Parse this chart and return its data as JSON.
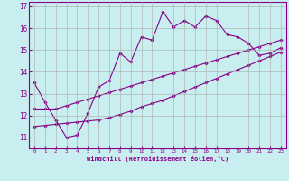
{
  "xlabel": "Windchill (Refroidissement éolien,°C)",
  "ylabel": "",
  "bg_color": "#c8eef0",
  "line_color": "#880088",
  "grid_color": "#aaaaaa",
  "x_ticks": [
    0,
    1,
    2,
    3,
    4,
    5,
    6,
    7,
    8,
    9,
    10,
    11,
    12,
    13,
    14,
    15,
    16,
    17,
    18,
    19,
    20,
    21,
    22,
    23
  ],
  "y_ticks": [
    11,
    12,
    13,
    14,
    15,
    16,
    17
  ],
  "xlim": [
    -0.5,
    23.5
  ],
  "ylim": [
    10.5,
    17.2
  ],
  "series1_x": [
    0,
    1,
    2,
    3,
    4,
    5,
    6,
    7,
    8,
    9,
    10,
    11,
    12,
    13,
    14,
    15,
    16,
    17,
    18,
    19,
    20,
    21,
    22,
    23
  ],
  "series1_y": [
    13.5,
    12.6,
    11.8,
    11.0,
    11.1,
    12.1,
    13.3,
    13.6,
    14.85,
    14.45,
    15.6,
    15.45,
    16.75,
    16.05,
    16.35,
    16.05,
    16.55,
    16.35,
    15.7,
    15.6,
    15.3,
    14.75,
    14.85,
    15.1
  ],
  "series2_x": [
    0,
    1,
    2,
    3,
    4,
    5,
    6,
    7,
    8,
    9,
    10,
    11,
    12,
    13,
    14,
    15,
    16,
    17,
    18,
    19,
    20,
    21,
    22,
    23
  ],
  "series2_y": [
    12.3,
    12.3,
    12.3,
    12.45,
    12.6,
    12.75,
    12.9,
    13.05,
    13.2,
    13.35,
    13.5,
    13.65,
    13.8,
    13.95,
    14.1,
    14.25,
    14.4,
    14.55,
    14.7,
    14.85,
    15.0,
    15.15,
    15.3,
    15.45
  ],
  "series3_x": [
    0,
    1,
    2,
    3,
    4,
    5,
    6,
    7,
    8,
    9,
    10,
    11,
    12,
    13,
    14,
    15,
    16,
    17,
    18,
    19,
    20,
    21,
    22,
    23
  ],
  "series3_y": [
    11.5,
    11.55,
    11.6,
    11.65,
    11.7,
    11.75,
    11.8,
    11.9,
    12.05,
    12.2,
    12.4,
    12.55,
    12.7,
    12.9,
    13.1,
    13.3,
    13.5,
    13.7,
    13.9,
    14.1,
    14.3,
    14.5,
    14.7,
    14.9
  ]
}
